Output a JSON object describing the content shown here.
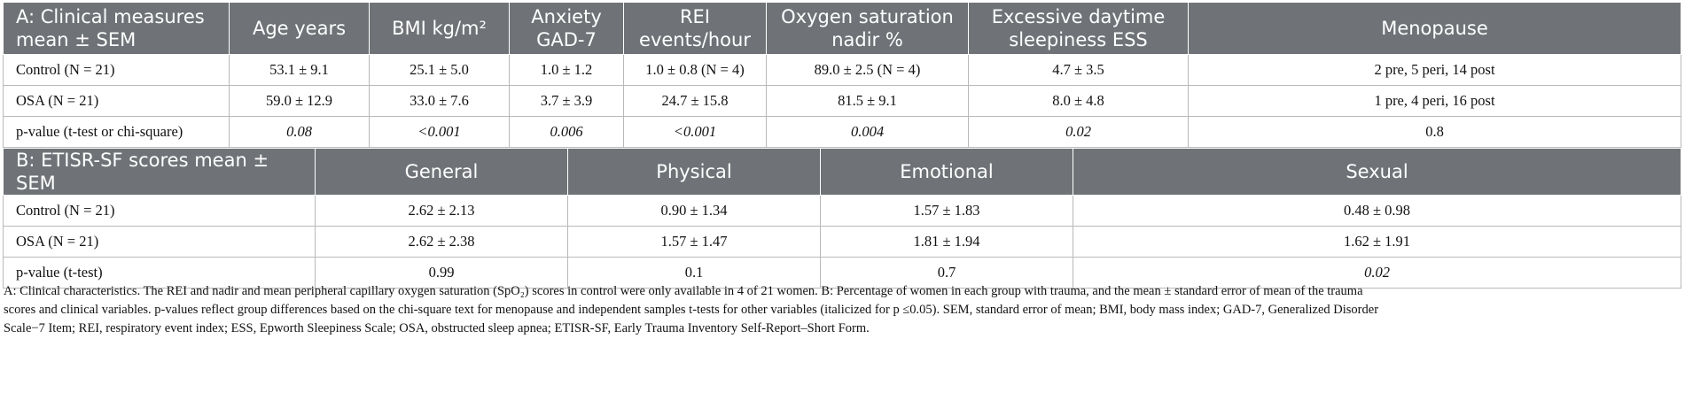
{
  "tableA": {
    "header": [
      "A: Clinical measures mean ± SEM",
      "Age years",
      "BMI kg/m²",
      "Anxiety GAD-7",
      "REI events/hour",
      "Oxygen saturation nadir %",
      "Excessive daytime sleepiness ESS",
      "Menopause"
    ],
    "rows": [
      [
        "Control (N = 21)",
        "53.1 ± 9.1",
        "25.1 ± 5.0",
        "1.0 ± 1.2",
        "1.0 ± 0.8 (N = 4)",
        "89.0 ± 2.5 (N = 4)",
        "4.7 ± 3.5",
        "2 pre, 5 peri, 14 post"
      ],
      [
        "OSA (N = 21)",
        "59.0 ± 12.9",
        "33.0 ± 7.6",
        "3.7 ± 3.9",
        "24.7 ± 15.8",
        "81.5 ± 9.1",
        "8.0 ± 4.8",
        "1 pre, 4 peri, 16 post"
      ],
      [
        "p-value (t-test or chi-square)",
        "0.08",
        "<0.001",
        "0.006",
        "<0.001",
        "0.004",
        "0.02",
        "0.8"
      ]
    ]
  },
  "tableB": {
    "header": [
      "B: ETISR-SF scores mean ± SEM",
      "General",
      "Physical",
      "Emotional",
      "Sexual"
    ],
    "rows": [
      [
        "Control (N = 21)",
        "2.62 ± 2.13",
        "0.90 ± 1.34",
        "1.57 ± 1.83",
        "0.48 ± 0.98"
      ],
      [
        "OSA (N = 21)",
        "2.62 ± 2.38",
        "1.57 ± 1.47",
        "1.81 ± 1.94",
        "1.62 ± 1.91"
      ],
      [
        "p-value (t-test)",
        "0.99",
        "0.1",
        "0.7",
        "0.02"
      ]
    ]
  },
  "footnote": {
    "line1": "A: Clinical characteristics. The REI and nadir and mean peripheral capillary oxygen saturation (SpO₂) scores in control were only available in 4 of 21 women. B: Percentage of women in each group with trauma, and the mean ± standard error of mean of the trauma",
    "line2": "scores and clinical variables. p-values reflect group differences based on the chi-square text for menopause and independent samples t-tests for other variables (italicized for p ≤0.05). SEM, standard error of mean; BMI, body mass index; GAD-7, Generalized Disorder",
    "line3": "Scale−7 Item; REI, respiratory event index; ESS, Epworth Sleepiness Scale; OSA, obstructed sleep apnea; ETISR-SF, Early Trauma Inventory Self-Report–Short Form."
  },
  "colors": {
    "header_bg": "#6f7377",
    "header_text": "#ffffff",
    "border": "#b9b9b9"
  }
}
